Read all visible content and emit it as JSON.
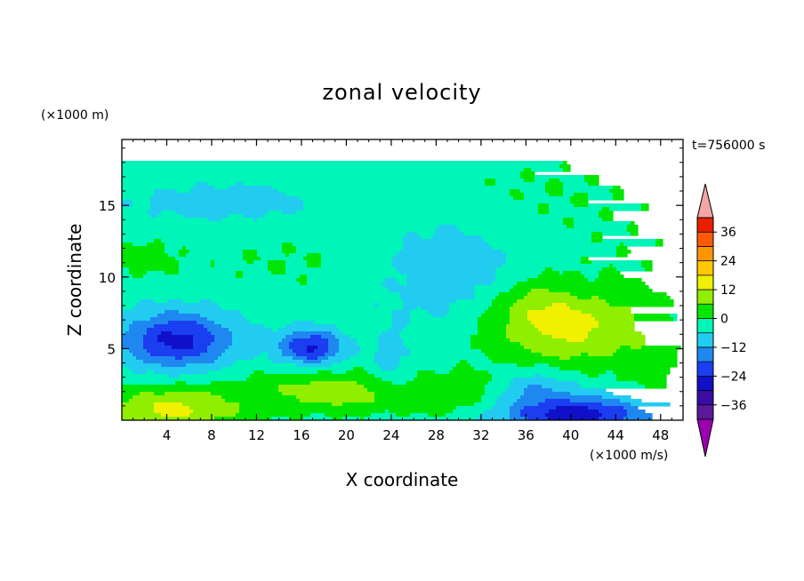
{
  "chart_data": {
    "type": "heatmap",
    "title": "zonal velocity",
    "xlabel": "X coordinate",
    "ylabel": "Z coordinate",
    "x_unit_label": "(×1000 m/s)",
    "y_unit_label": "(×1000 m)",
    "time_label": "t=756000 s",
    "xlim": [
      0,
      50
    ],
    "ylim": [
      0,
      19.6
    ],
    "x_ticks": [
      4,
      8,
      12,
      16,
      20,
      24,
      28,
      32,
      36,
      40,
      44,
      48
    ],
    "y_ticks": [
      5,
      10,
      15
    ],
    "colorbar": {
      "ticks": [
        36,
        24,
        12,
        0,
        -12,
        -24,
        -36
      ],
      "levels": [
        -42,
        -36,
        -30,
        -24,
        -18,
        -12,
        -6,
        0,
        6,
        12,
        18,
        24,
        30,
        36,
        42
      ],
      "colors": [
        "#5a189a",
        "#3a0ca3",
        "#1010c8",
        "#1a3ef0",
        "#1e88f0",
        "#22ccf0",
        "#00f5b8",
        "#00e600",
        "#90ee00",
        "#f0f000",
        "#ffc800",
        "#ff9600",
        "#ff5a00",
        "#e82000"
      ],
      "over_color": "#f4a6a6",
      "under_color": "#9b00b0"
    },
    "background_value": -3,
    "features": [
      {
        "x": 4.5,
        "z": 0.8,
        "sx": 4.5,
        "sz": 1.1,
        "value": 17
      },
      {
        "x": 20.5,
        "z": 1.9,
        "sx": 3.8,
        "sz": 1.0,
        "value": 9
      },
      {
        "x": 29.5,
        "z": 1.7,
        "sx": 4.5,
        "sz": 1.3,
        "value": 7
      },
      {
        "x": 15.0,
        "z": 2.2,
        "sx": 4.0,
        "sz": 1.1,
        "value": 6
      },
      {
        "x": 5.0,
        "z": 5.6,
        "sx": 3.5,
        "sz": 1.4,
        "value": -23
      },
      {
        "x": 16.8,
        "z": 5.1,
        "sx": 2.0,
        "sz": 0.9,
        "value": -22
      },
      {
        "x": 40.5,
        "z": 0.4,
        "sx": 5.0,
        "sz": 0.9,
        "value": -24
      },
      {
        "x": 36.8,
        "z": 2.3,
        "sx": 2.5,
        "sz": 0.9,
        "value": -10
      },
      {
        "x": 40.3,
        "z": 6.3,
        "sx": 5.5,
        "sz": 1.8,
        "value": 16
      },
      {
        "x": 37.0,
        "z": 8.2,
        "sx": 2.6,
        "sz": 1.3,
        "value": 7
      },
      {
        "x": 47.0,
        "z": 2.5,
        "sx": 2.0,
        "sz": 1.5,
        "value": 4
      },
      {
        "x": 29.0,
        "z": 10.5,
        "sx": 4.5,
        "sz": 3.0,
        "value": -7
      },
      {
        "x": 9.5,
        "z": 15.2,
        "sx": 6.0,
        "sz": 0.9,
        "value": -7
      },
      {
        "x": 36.0,
        "z": 16.0,
        "sx": 10.5,
        "sz": 2.2,
        "value": 3
      },
      {
        "x": 15.0,
        "z": 11.0,
        "sx": 7.0,
        "sz": 1.6,
        "value": 3
      },
      {
        "x": 45.0,
        "z": 11.5,
        "sx": 5.0,
        "sz": 2.0,
        "value": 2
      },
      {
        "x": 2.0,
        "z": 11.3,
        "sx": 2.0,
        "sz": 0.9,
        "value": 6
      },
      {
        "x": 24.0,
        "z": 3.5,
        "sx": 1.3,
        "sz": 2.0,
        "value": -6
      }
    ]
  }
}
